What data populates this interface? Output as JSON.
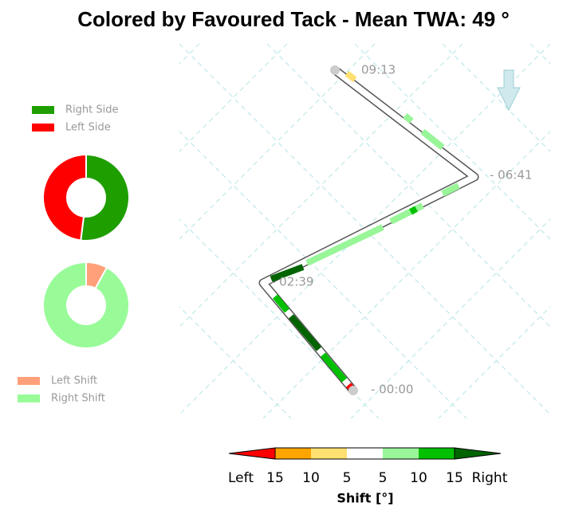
{
  "title": "Colored by Favoured Tack - Mean TWA: 49 °",
  "chart_data": [
    {
      "type": "pie",
      "categories": [
        "Right Side",
        "Left Side"
      ],
      "values": [
        52,
        48
      ],
      "colors": [
        "#1f9e00",
        "#ff0000"
      ]
    },
    {
      "type": "pie",
      "categories": [
        "Left Shift",
        "Right Shift"
      ],
      "values": [
        8,
        92
      ],
      "colors": [
        "#ffa07a",
        "#98fb98"
      ]
    }
  ],
  "track": {
    "labels": [
      "09:13",
      "- 06:41",
      "- 02:39",
      "- 00:00"
    ]
  },
  "colorbar": {
    "label": "Shift [°]",
    "end_labels": [
      "Left",
      "Right"
    ],
    "colors": [
      "#ff0000",
      "#ffa500",
      "#ffe070",
      "#ffffff",
      "#98f598",
      "#00c000",
      "#006400"
    ],
    "ticks": [
      "15",
      "10",
      "5",
      "5",
      "10",
      "15"
    ]
  }
}
